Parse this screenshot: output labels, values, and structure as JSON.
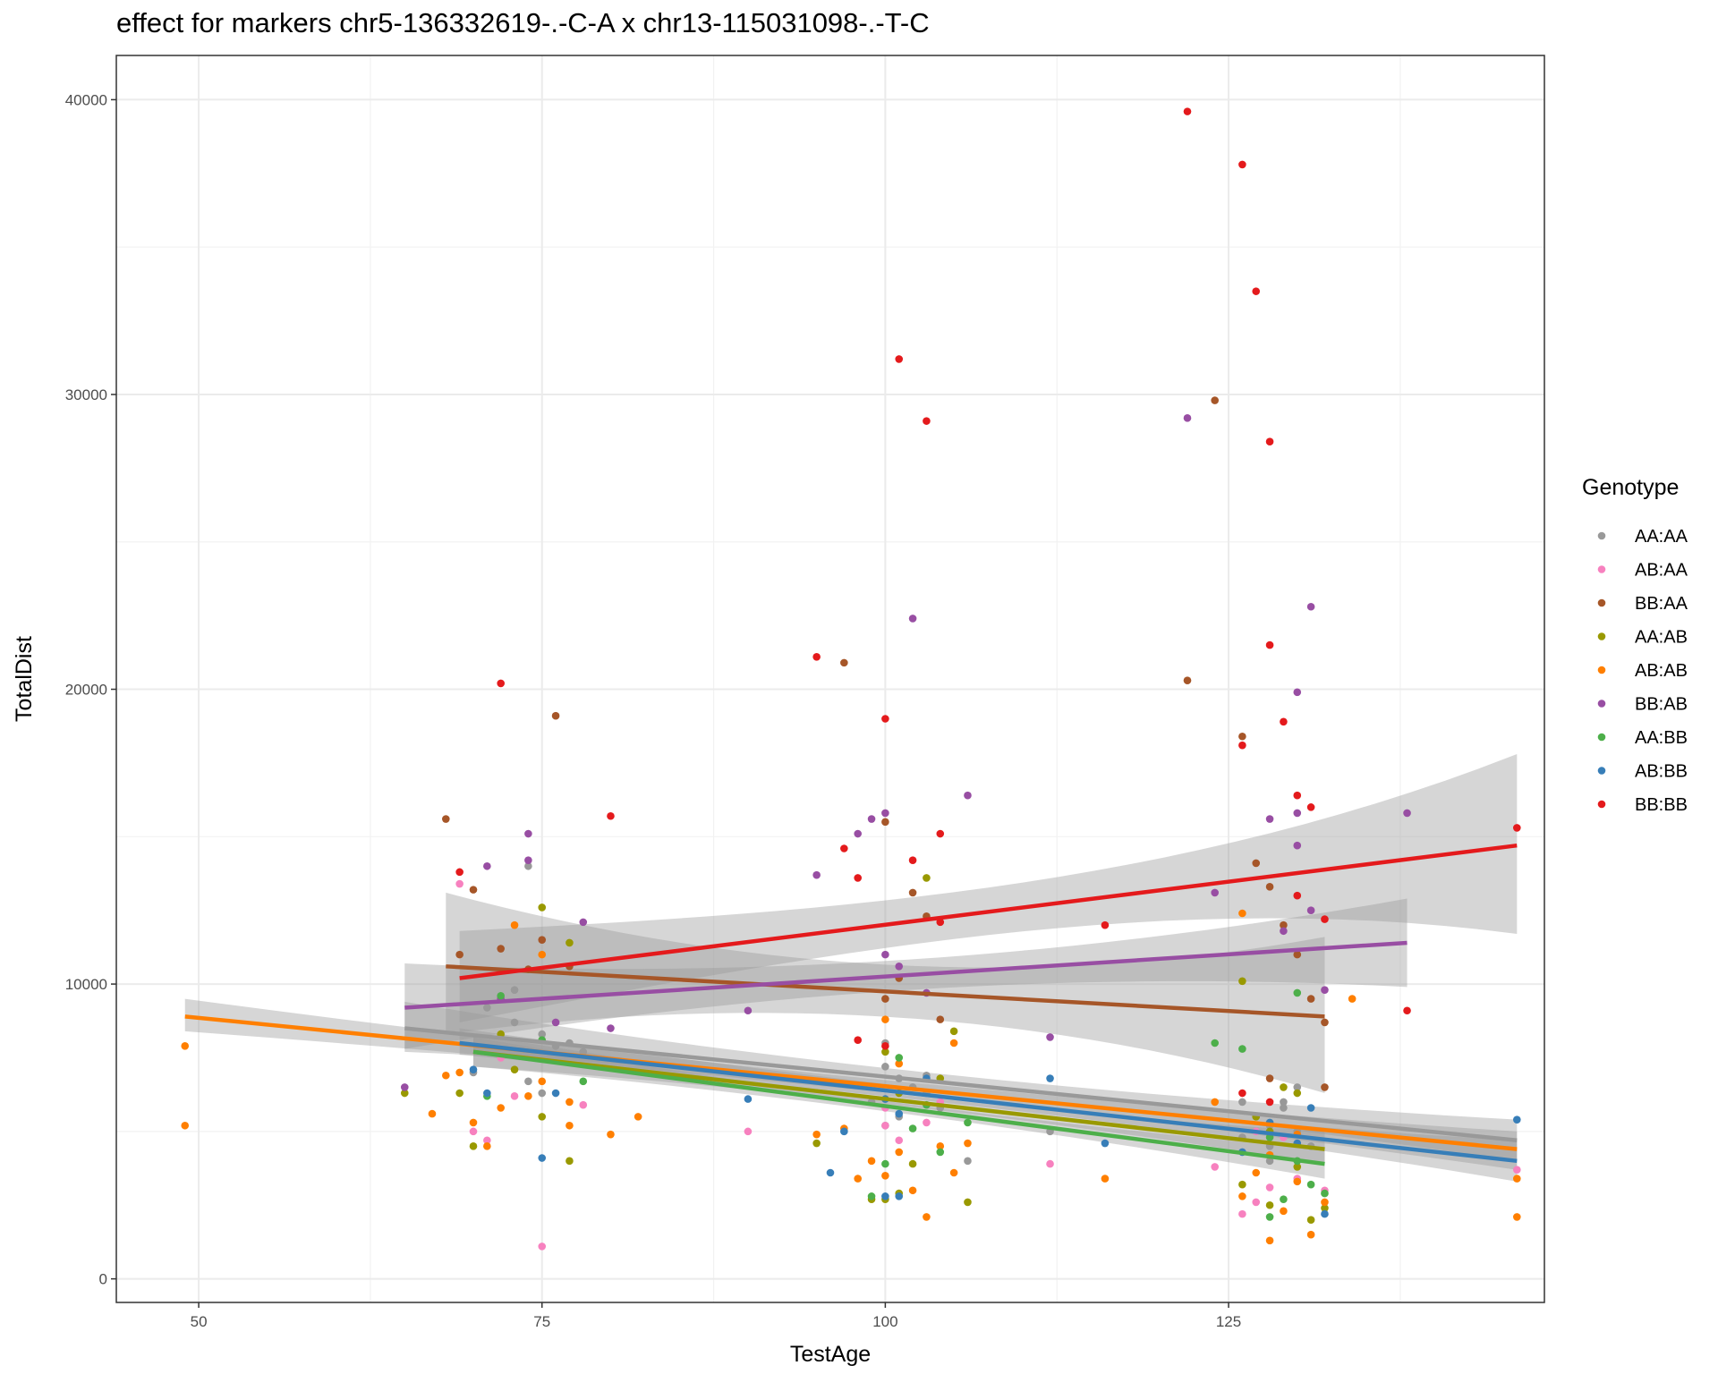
{
  "chart_data": {
    "type": "scatter",
    "title": "effect for markers chr5-136332619-.-C-A x chr13-115031098-.-T-C",
    "xlabel": "TestAge",
    "ylabel": "TotalDist",
    "xlim": [
      44,
      148
    ],
    "ylim": [
      -800,
      41500
    ],
    "x_ticks": [
      50,
      75,
      100,
      125
    ],
    "y_ticks": [
      0,
      10000,
      20000,
      30000,
      40000
    ],
    "grid": true,
    "legend": {
      "title": "Genotype",
      "position": "right"
    },
    "series": [
      {
        "name": "AA:AA",
        "color": "#999999",
        "trend": {
          "x": [
            65,
            146
          ],
          "y": [
            8500,
            4700
          ],
          "ci_low": [
            7700,
            4000
          ],
          "ci_high": [
            9400,
            5400
          ]
        },
        "points": [
          [
            73,
            9800
          ],
          [
            74,
            14000
          ],
          [
            71,
            9200
          ],
          [
            73,
            8700
          ],
          [
            75,
            8300
          ],
          [
            76,
            7900
          ],
          [
            70,
            7000
          ],
          [
            74,
            6700
          ],
          [
            75,
            6300
          ],
          [
            77,
            8000
          ],
          [
            78,
            7700
          ],
          [
            100,
            8000
          ],
          [
            100,
            7200
          ],
          [
            101,
            6800
          ],
          [
            102,
            6500
          ],
          [
            103,
            6900
          ],
          [
            104,
            5800
          ],
          [
            99,
            6000
          ],
          [
            100,
            5200
          ],
          [
            106,
            4000
          ],
          [
            101,
            5500
          ],
          [
            103,
            6300
          ],
          [
            112,
            5000
          ],
          [
            126,
            6000
          ],
          [
            127,
            5500
          ],
          [
            128,
            5200
          ],
          [
            129,
            5800
          ],
          [
            130,
            5000
          ],
          [
            131,
            4500
          ],
          [
            128,
            4000
          ],
          [
            126,
            4800
          ],
          [
            130,
            6500
          ],
          [
            129,
            6000
          ],
          [
            128,
            4500
          ]
        ]
      },
      {
        "name": "AB:AA",
        "color": "#f781bf",
        "trend": null,
        "points": [
          [
            69,
            13400
          ],
          [
            70,
            5000
          ],
          [
            71,
            4700
          ],
          [
            73,
            6200
          ],
          [
            75,
            1100
          ],
          [
            78,
            5900
          ],
          [
            90,
            5000
          ],
          [
            100,
            5800
          ],
          [
            101,
            4700
          ],
          [
            103,
            5300
          ],
          [
            104,
            6000
          ],
          [
            112,
            3900
          ],
          [
            124,
            3800
          ],
          [
            126,
            2200
          ],
          [
            127,
            2600
          ],
          [
            128,
            3100
          ],
          [
            130,
            3400
          ],
          [
            132,
            3000
          ],
          [
            146,
            3700
          ],
          [
            100,
            5200
          ],
          [
            129,
            4800
          ],
          [
            127,
            5000
          ],
          [
            72,
            7500
          ]
        ]
      },
      {
        "name": "BB:AA",
        "color": "#a65628",
        "trend": {
          "x": [
            68,
            132
          ],
          "y": [
            10600,
            8900
          ],
          "ci_low": [
            8300,
            6300
          ],
          "ci_high": [
            13100,
            11600
          ]
        },
        "points": [
          [
            68,
            15600
          ],
          [
            70,
            13200
          ],
          [
            76,
            19100
          ],
          [
            97,
            20900
          ],
          [
            100,
            15500
          ],
          [
            102,
            13100
          ],
          [
            103,
            12300
          ],
          [
            124,
            29800
          ],
          [
            122,
            20300
          ],
          [
            126,
            18400
          ],
          [
            127,
            14100
          ],
          [
            128,
            13300
          ],
          [
            129,
            12000
          ],
          [
            130,
            11000
          ],
          [
            131,
            9500
          ],
          [
            132,
            8700
          ],
          [
            100,
            9500
          ],
          [
            101,
            10200
          ],
          [
            104,
            8800
          ],
          [
            72,
            11200
          ],
          [
            74,
            10500
          ],
          [
            77,
            10600
          ],
          [
            69,
            11000
          ],
          [
            75,
            11500
          ],
          [
            132,
            6500
          ],
          [
            128,
            6800
          ]
        ]
      },
      {
        "name": "AA:AB",
        "color": "#999900",
        "trend": {
          "x": [
            70,
            132
          ],
          "y": [
            7700,
            4400
          ],
          "ci_low": [
            7200,
            3900
          ],
          "ci_high": [
            8300,
            5000
          ]
        },
        "points": [
          [
            65,
            6300
          ],
          [
            69,
            6300
          ],
          [
            70,
            4500
          ],
          [
            75,
            5500
          ],
          [
            75,
            12600
          ],
          [
            77,
            11400
          ],
          [
            77,
            4000
          ],
          [
            95,
            4600
          ],
          [
            99,
            2700
          ],
          [
            100,
            2700
          ],
          [
            101,
            2900
          ],
          [
            102,
            3900
          ],
          [
            103,
            13600
          ],
          [
            104,
            6800
          ],
          [
            105,
            8400
          ],
          [
            106,
            2600
          ],
          [
            126,
            10100
          ],
          [
            127,
            5500
          ],
          [
            128,
            5000
          ],
          [
            129,
            6500
          ],
          [
            130,
            6300
          ],
          [
            131,
            2000
          ],
          [
            132,
            2400
          ],
          [
            128,
            2500
          ],
          [
            126,
            3200
          ],
          [
            130,
            3800
          ],
          [
            100,
            7700
          ],
          [
            101,
            6300
          ],
          [
            72,
            8300
          ],
          [
            73,
            7100
          ]
        ]
      },
      {
        "name": "AB:AB",
        "color": "#ff7f00",
        "trend": {
          "x": [
            49,
            146
          ],
          "y": [
            8900,
            4400
          ],
          "ci_low": [
            8400,
            3700
          ],
          "ci_high": [
            9500,
            5000
          ]
        },
        "points": [
          [
            49,
            7900
          ],
          [
            49,
            5200
          ],
          [
            67,
            5600
          ],
          [
            68,
            6900
          ],
          [
            69,
            7000
          ],
          [
            70,
            5300
          ],
          [
            71,
            4500
          ],
          [
            72,
            5800
          ],
          [
            74,
            6200
          ],
          [
            75,
            6700
          ],
          [
            77,
            5200
          ],
          [
            77,
            6000
          ],
          [
            80,
            4900
          ],
          [
            82,
            5500
          ],
          [
            95,
            4900
          ],
          [
            97,
            5100
          ],
          [
            98,
            3400
          ],
          [
            99,
            4000
          ],
          [
            100,
            3500
          ],
          [
            101,
            4300
          ],
          [
            102,
            3000
          ],
          [
            103,
            2100
          ],
          [
            104,
            4500
          ],
          [
            105,
            3600
          ],
          [
            106,
            4600
          ],
          [
            116,
            3400
          ],
          [
            124,
            6000
          ],
          [
            126,
            2800
          ],
          [
            127,
            3600
          ],
          [
            128,
            1300
          ],
          [
            129,
            2300
          ],
          [
            130,
            3300
          ],
          [
            131,
            1500
          ],
          [
            132,
            2600
          ],
          [
            134,
            9500
          ],
          [
            146,
            2100
          ],
          [
            146,
            3400
          ],
          [
            126,
            12400
          ],
          [
            105,
            8000
          ],
          [
            100,
            8800
          ],
          [
            101,
            7300
          ],
          [
            75,
            11000
          ],
          [
            73,
            12000
          ],
          [
            128,
            4200
          ],
          [
            130,
            4900
          ]
        ]
      },
      {
        "name": "BB:AB",
        "color": "#984ea3",
        "trend": {
          "x": [
            65,
            138
          ],
          "y": [
            9200,
            11400
          ],
          "ci_low": [
            7800,
            9900
          ],
          "ci_high": [
            10700,
            12900
          ]
        },
        "points": [
          [
            65,
            6500
          ],
          [
            71,
            14000
          ],
          [
            74,
            15100
          ],
          [
            74,
            14200
          ],
          [
            78,
            12100
          ],
          [
            95,
            13700
          ],
          [
            98,
            15100
          ],
          [
            99,
            15600
          ],
          [
            100,
            15800
          ],
          [
            102,
            22400
          ],
          [
            106,
            16400
          ],
          [
            112,
            8200
          ],
          [
            122,
            29200
          ],
          [
            124,
            13100
          ],
          [
            128,
            15600
          ],
          [
            129,
            11800
          ],
          [
            130,
            14700
          ],
          [
            130,
            15800
          ],
          [
            130,
            19900
          ],
          [
            131,
            22800
          ],
          [
            131,
            12500
          ],
          [
            132,
            9800
          ],
          [
            138,
            15800
          ],
          [
            100,
            11000
          ],
          [
            101,
            10600
          ],
          [
            103,
            9700
          ],
          [
            72,
            9500
          ],
          [
            76,
            8700
          ],
          [
            80,
            8500
          ],
          [
            90,
            9100
          ]
        ]
      },
      {
        "name": "AA:BB",
        "color": "#4daf4a",
        "trend": {
          "x": [
            70,
            132
          ],
          "y": [
            7700,
            3900
          ],
          "ci_low": [
            7200,
            3400
          ],
          "ci_high": [
            8200,
            4400
          ]
        },
        "points": [
          [
            71,
            6200
          ],
          [
            72,
            9600
          ],
          [
            75,
            8100
          ],
          [
            78,
            6700
          ],
          [
            99,
            2800
          ],
          [
            100,
            3900
          ],
          [
            102,
            5100
          ],
          [
            103,
            5900
          ],
          [
            104,
            4300
          ],
          [
            106,
            5300
          ],
          [
            124,
            8000
          ],
          [
            126,
            7800
          ],
          [
            128,
            2100
          ],
          [
            129,
            2700
          ],
          [
            130,
            9700
          ],
          [
            131,
            3200
          ],
          [
            132,
            2900
          ],
          [
            128,
            4800
          ],
          [
            130,
            4000
          ],
          [
            101,
            7500
          ]
        ]
      },
      {
        "name": "AB:BB",
        "color": "#377eb8",
        "trend": {
          "x": [
            69,
            146
          ],
          "y": [
            8000,
            4000
          ],
          "ci_low": [
            7600,
            3300
          ],
          "ci_high": [
            8500,
            4700
          ]
        },
        "points": [
          [
            70,
            7100
          ],
          [
            71,
            6300
          ],
          [
            75,
            4100
          ],
          [
            76,
            6300
          ],
          [
            90,
            6100
          ],
          [
            96,
            3600
          ],
          [
            97,
            5000
          ],
          [
            100,
            2800
          ],
          [
            101,
            2800
          ],
          [
            103,
            6800
          ],
          [
            112,
            6800
          ],
          [
            116,
            4600
          ],
          [
            128,
            5300
          ],
          [
            130,
            4600
          ],
          [
            131,
            5800
          ],
          [
            132,
            2200
          ],
          [
            146,
            5400
          ],
          [
            100,
            6100
          ],
          [
            101,
            5600
          ],
          [
            126,
            4300
          ]
        ]
      },
      {
        "name": "BB:BB",
        "color": "#e41a1c",
        "trend": {
          "x": [
            69,
            146
          ],
          "y": [
            10200,
            14700
          ],
          "ci_low": [
            8700,
            11700
          ],
          "ci_high": [
            11800,
            17800
          ]
        },
        "points": [
          [
            69,
            13800
          ],
          [
            72,
            20200
          ],
          [
            80,
            15700
          ],
          [
            95,
            21100
          ],
          [
            97,
            14600
          ],
          [
            98,
            13600
          ],
          [
            100,
            19000
          ],
          [
            101,
            31200
          ],
          [
            102,
            14200
          ],
          [
            103,
            29100
          ],
          [
            104,
            12100
          ],
          [
            104,
            15100
          ],
          [
            116,
            12000
          ],
          [
            122,
            39600
          ],
          [
            126,
            37800
          ],
          [
            127,
            33500
          ],
          [
            128,
            28400
          ],
          [
            128,
            21500
          ],
          [
            129,
            18900
          ],
          [
            130,
            16400
          ],
          [
            130,
            13000
          ],
          [
            131,
            16000
          ],
          [
            126,
            18100
          ],
          [
            138,
            9100
          ],
          [
            146,
            15300
          ],
          [
            100,
            7900
          ],
          [
            98,
            8100
          ],
          [
            126,
            6300
          ],
          [
            128,
            6000
          ],
          [
            132,
            12200
          ]
        ]
      }
    ]
  }
}
